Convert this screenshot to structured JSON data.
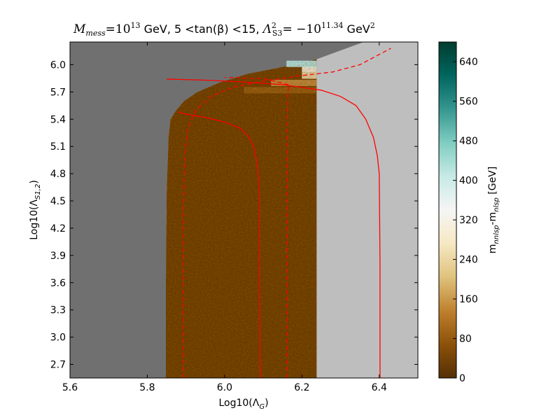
{
  "chart_data": {
    "type": "heatmap",
    "title": "M_mess = 10^13 GeV, 5 < tan(β) < 15, Λ²_S3 = −10^11.34 GeV²",
    "title_parts": {
      "m_mess": "M",
      "m_mess_sub": "mess",
      "m_mess_val": "=10",
      "m_mess_exp": "13",
      "gev1": " GeV, ",
      "tanb": "5 <tan(β) <15, ",
      "lam": "Λ",
      "lam_sup": "2",
      "lam_sub": "S3",
      "lam_val": "= −10",
      "lam_exp": "11.34",
      "gev2": " GeV",
      "gev2_sup": "2"
    },
    "xlabel": "Log10(Λ_G)",
    "xlabel_parts": {
      "main": "Log10(Λ",
      "sub": "G",
      "end": ")"
    },
    "ylabel": "Log10(Λ_S1,2)",
    "ylabel_parts": {
      "main": "Log10(Λ",
      "sub": "S1,2",
      "end": ")"
    },
    "xlim": [
      5.6,
      6.5
    ],
    "ylim": [
      2.55,
      6.25
    ],
    "x_ticks": [
      "5.6",
      "5.8",
      "6.0",
      "6.2",
      "6.4"
    ],
    "y_ticks": [
      "2.7",
      "3.0",
      "3.3",
      "3.6",
      "3.9",
      "4.2",
      "4.5",
      "4.8",
      "5.1",
      "5.4",
      "5.7",
      "6.0"
    ],
    "colorbar": {
      "label": "m_nnlsp - m_nlsp [GeV]",
      "label_parts": {
        "m1": "m",
        "s1": "nnlsp",
        "dash": "-m",
        "s2": "nlsp",
        "unit": " [GeV]"
      },
      "range": [
        0,
        680
      ],
      "ticks": [
        "0",
        "80",
        "160",
        "240",
        "320",
        "400",
        "480",
        "560",
        "640"
      ],
      "colors": [
        "#543005",
        "#8c510a",
        "#bf812d",
        "#dfc27d",
        "#f6e8c3",
        "#f5f5f5",
        "#c7eae5",
        "#80cdc1",
        "#35978f",
        "#01665e",
        "#003c30"
      ]
    },
    "excluded_left_color": "#707070",
    "excluded_right_color": "#bebebe",
    "region": {
      "left_boundary": [
        [
          2.55,
          5.848
        ],
        [
          3.6,
          5.848
        ],
        [
          4.6,
          5.85
        ],
        [
          5.2,
          5.855
        ],
        [
          5.4,
          5.86
        ],
        [
          5.5,
          5.875
        ],
        [
          5.6,
          5.895
        ],
        [
          5.7,
          5.93
        ],
        [
          5.8,
          5.985
        ],
        [
          5.9,
          6.06
        ],
        [
          6.0,
          6.18
        ],
        [
          6.06,
          6.238
        ]
      ],
      "right_edge": 6.238,
      "top": 6.06,
      "bulk_value": 45,
      "ridge_values": [
        [
          5.7,
          6.05,
          90
        ],
        [
          5.78,
          6.12,
          150
        ],
        [
          5.86,
          6.2,
          240
        ],
        [
          5.93,
          6.2,
          300
        ],
        [
          5.99,
          6.16,
          420
        ],
        [
          6.03,
          6.238,
          520
        ]
      ]
    },
    "contours": [
      {
        "style": "dashed",
        "color": "#ff0000",
        "points": [
          [
            2.55,
            5.893
          ],
          [
            4.5,
            5.894
          ],
          [
            5.0,
            5.897
          ],
          [
            5.3,
            5.905
          ],
          [
            5.5,
            5.925
          ],
          [
            5.65,
            5.965
          ],
          [
            5.75,
            6.02
          ],
          [
            5.82,
            6.1
          ],
          [
            5.88,
            6.2
          ],
          [
            5.92,
            6.28
          ],
          [
            6.0,
            6.35
          ],
          [
            6.18,
            6.43
          ]
        ]
      },
      {
        "style": "solid",
        "color": "#ff0000",
        "points": [
          [
            2.55,
            6.092
          ],
          [
            4.0,
            6.09
          ],
          [
            4.6,
            6.09
          ],
          [
            4.9,
            6.085
          ],
          [
            5.1,
            6.075
          ],
          [
            5.2,
            6.063
          ],
          [
            5.3,
            6.04
          ],
          [
            5.37,
            6.0
          ],
          [
            5.42,
            5.95
          ],
          [
            5.46,
            5.895
          ],
          [
            5.48,
            5.88
          ]
        ]
      },
      {
        "style": "dashed",
        "color": "#ff0000",
        "points": [
          [
            2.55,
            6.162
          ],
          [
            5.0,
            6.162
          ],
          [
            5.6,
            6.163
          ],
          [
            5.78,
            6.165
          ]
        ]
      },
      {
        "style": "dashed",
        "color": "#ff0000",
        "points": [
          [
            5.78,
            6.165
          ],
          [
            5.85,
            6.1
          ],
          [
            5.85,
            6.06
          ],
          [
            5.86,
            6.03
          ],
          [
            5.86,
            6.0
          ]
        ]
      },
      {
        "style": "solid",
        "color": "#ff0000",
        "points": [
          [
            2.55,
            6.402
          ],
          [
            3.8,
            6.402
          ],
          [
            4.8,
            6.4
          ],
          [
            5.0,
            6.395
          ],
          [
            5.2,
            6.385
          ],
          [
            5.4,
            6.365
          ],
          [
            5.55,
            6.34
          ],
          [
            5.65,
            6.3
          ],
          [
            5.72,
            6.25
          ],
          [
            5.75,
            6.2
          ],
          [
            5.78,
            6.15
          ],
          [
            5.81,
            6.05
          ],
          [
            5.83,
            5.95
          ],
          [
            5.84,
            5.87
          ],
          [
            5.84,
            5.85
          ]
        ]
      }
    ]
  }
}
